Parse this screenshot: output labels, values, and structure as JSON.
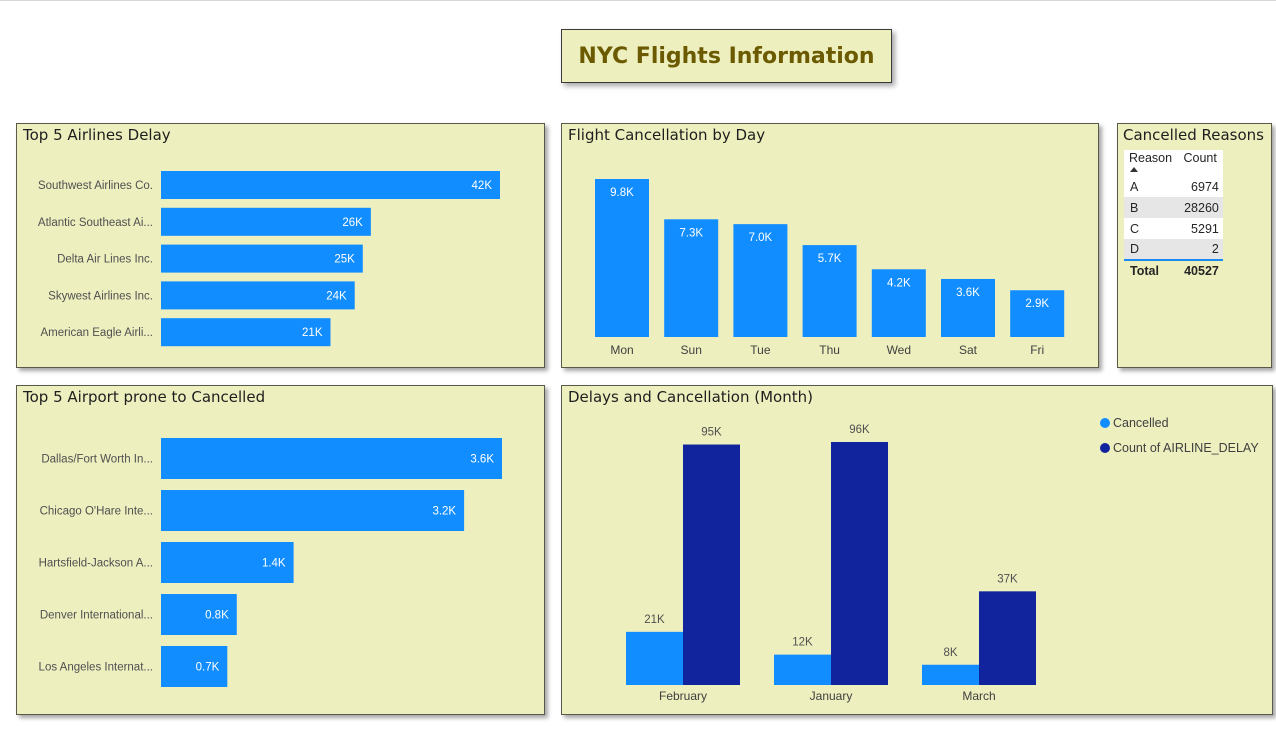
{
  "page": {
    "title": "NYC Flights Information"
  },
  "colors": {
    "bar": "#118dff",
    "bar_dark": "#12239e",
    "panel_bg": "#edefbf",
    "title_text": "#6b5a00"
  },
  "chart_data": [
    {
      "id": "airlines",
      "type": "bar",
      "orientation": "horizontal",
      "title": "Top 5 Airlines Delay",
      "categories": [
        "Southwest Airlines Co.",
        "Atlantic Southeast Ai...",
        "Delta Air Lines Inc.",
        "Skywest Airlines Inc.",
        "American Eagle Airli..."
      ],
      "values": [
        42000,
        26000,
        25000,
        24000,
        21000
      ],
      "labels": [
        "42K",
        "26K",
        "25K",
        "24K",
        "21K"
      ],
      "xlim": [
        0,
        42000
      ]
    },
    {
      "id": "days",
      "type": "bar",
      "orientation": "vertical",
      "title": "Flight Cancellation by Day",
      "categories": [
        "Mon",
        "Sun",
        "Tue",
        "Thu",
        "Wed",
        "Sat",
        "Fri"
      ],
      "values": [
        9800,
        7300,
        7000,
        5700,
        4200,
        3600,
        2900
      ],
      "labels": [
        "9.8K",
        "7.3K",
        "7.0K",
        "5.7K",
        "4.2K",
        "3.6K",
        "2.9K"
      ],
      "ylim": [
        0,
        9800
      ]
    },
    {
      "id": "reasons",
      "type": "table",
      "title": "Cancelled Reasons",
      "columns": [
        "Reason",
        "Count"
      ],
      "rows": [
        [
          "A",
          "6974"
        ],
        [
          "B",
          "28260"
        ],
        [
          "C",
          "5291"
        ],
        [
          "D",
          "2"
        ]
      ],
      "total": [
        "Total",
        "40527"
      ]
    },
    {
      "id": "airports",
      "type": "bar",
      "orientation": "horizontal",
      "title": "Top 5 Airport prone to Cancelled",
      "categories": [
        "Dallas/Fort Worth In...",
        "Chicago O'Hare Inte...",
        "Hartsfield-Jackson A...",
        "Denver International...",
        "Los Angeles Internat..."
      ],
      "values": [
        3600,
        3200,
        1400,
        800,
        700
      ],
      "labels": [
        "3.6K",
        "3.2K",
        "1.4K",
        "0.8K",
        "0.7K"
      ],
      "xlim": [
        0,
        3600
      ]
    },
    {
      "id": "months",
      "type": "bar",
      "orientation": "vertical",
      "title": "Delays and Cancellation (Month)",
      "categories": [
        "February",
        "January",
        "March"
      ],
      "series": [
        {
          "name": "Cancelled",
          "values": [
            21000,
            12000,
            8000
          ],
          "labels": [
            "21K",
            "12K",
            "8K"
          ]
        },
        {
          "name": "Count of AIRLINE_DELAY",
          "values": [
            95000,
            96000,
            37000
          ],
          "labels": [
            "95K",
            "96K",
            "37K"
          ]
        }
      ],
      "ylim": [
        0,
        96000
      ],
      "legend": "top-right"
    }
  ]
}
